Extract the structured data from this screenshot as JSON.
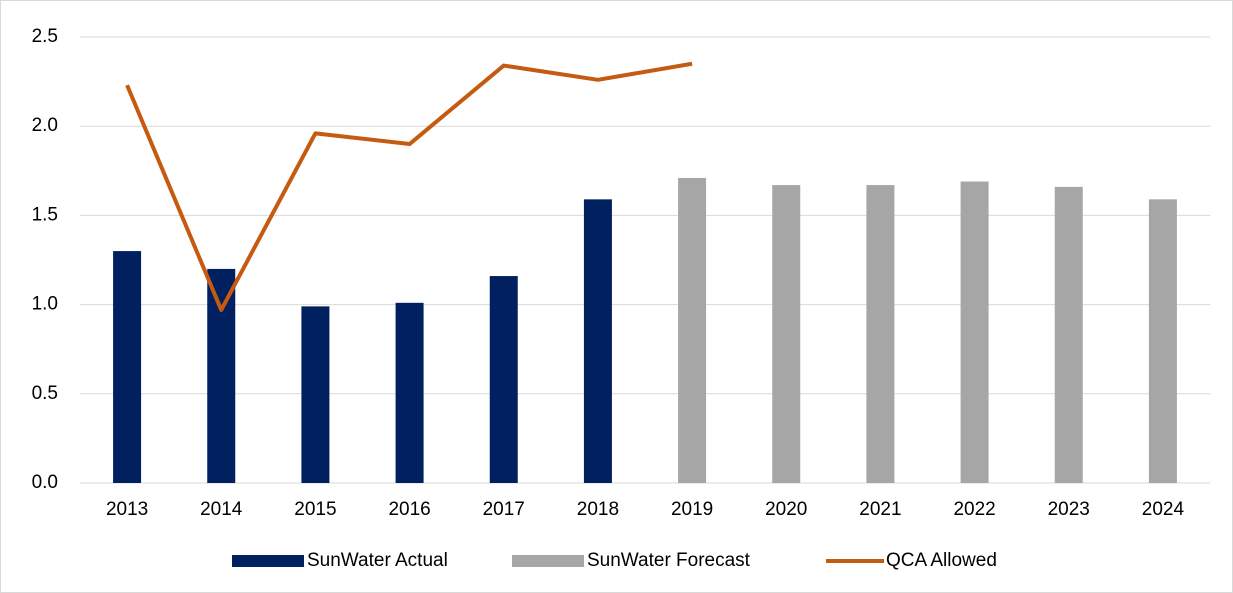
{
  "chart_data": {
    "type": "bar",
    "categories": [
      "2013",
      "2014",
      "2015",
      "2016",
      "2017",
      "2018",
      "2019",
      "2020",
      "2021",
      "2022",
      "2023",
      "2024"
    ],
    "series": [
      {
        "name": "SunWater Actual",
        "type": "bar",
        "color": "#002060",
        "values": [
          1.3,
          1.2,
          0.99,
          1.01,
          1.16,
          1.59,
          null,
          null,
          null,
          null,
          null,
          null
        ]
      },
      {
        "name": "SunWater Forecast",
        "type": "bar",
        "color": "#a6a6a6",
        "values": [
          null,
          null,
          null,
          null,
          null,
          null,
          1.71,
          1.67,
          1.67,
          1.69,
          1.66,
          1.59
        ]
      },
      {
        "name": "QCA Allowed",
        "type": "line",
        "color": "#c55a11",
        "values": [
          2.23,
          0.97,
          1.96,
          1.9,
          2.34,
          2.26,
          2.35,
          null,
          null,
          null,
          null,
          null
        ]
      }
    ],
    "ylim": [
      0,
      2.5
    ],
    "yticks": [
      {
        "value": 0,
        "label": "0.0"
      },
      {
        "value": 0.5,
        "label": "0.5"
      },
      {
        "value": 1,
        "label": "1.0"
      },
      {
        "value": 1.5,
        "label": "1.5"
      },
      {
        "value": 2,
        "label": "2.0"
      },
      {
        "value": 2.5,
        "label": "2.5"
      }
    ],
    "grid": true,
    "legend": "bottom"
  }
}
